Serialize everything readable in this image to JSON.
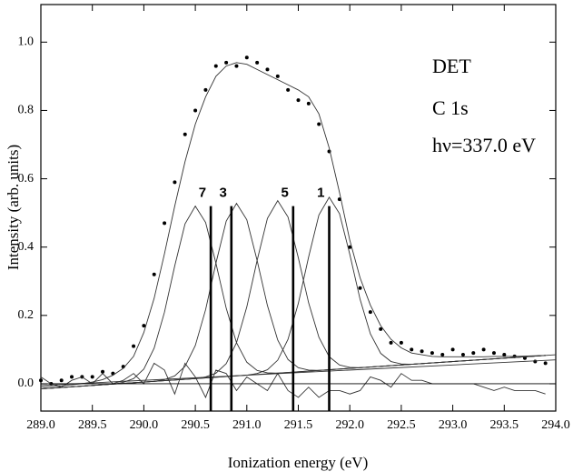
{
  "chart_data": {
    "type": "line",
    "xlabel": "Ionization energy (eV)",
    "ylabel": "Intensity (arb. units)",
    "annotations": [
      "DET",
      "C 1s",
      "hν=337.0 eV"
    ],
    "xlim": [
      289,
      294
    ],
    "ylim": [
      -0.08,
      1.11
    ],
    "xticks": [
      {
        "value": 289,
        "label": "289.0"
      },
      {
        "value": 289.5,
        "label": "289.5"
      },
      {
        "value": 290,
        "label": "290.0"
      },
      {
        "value": 290.5,
        "label": "290.5"
      },
      {
        "value": 291,
        "label": "291.0"
      },
      {
        "value": 291.5,
        "label": "291.5"
      },
      {
        "value": 292,
        "label": "292.0"
      },
      {
        "value": 292.5,
        "label": "292.5"
      },
      {
        "value": 293,
        "label": "293.0"
      },
      {
        "value": 293.5,
        "label": "293.5"
      },
      {
        "value": 294,
        "label": "294.0"
      }
    ],
    "yticks": [
      {
        "value": 0,
        "label": "0.0"
      },
      {
        "value": 0.2,
        "label": "0.2"
      },
      {
        "value": 0.4,
        "label": "0.4"
      },
      {
        "value": 0.6,
        "label": "0.6"
      },
      {
        "value": 0.8,
        "label": "0.8"
      },
      {
        "value": 1,
        "label": "1.0"
      }
    ],
    "x": [
      289.0,
      289.1,
      289.2,
      289.3,
      289.4,
      289.5,
      289.6,
      289.7,
      289.8,
      289.9,
      290.0,
      290.1,
      290.2,
      290.3,
      290.4,
      290.5,
      290.6,
      290.7,
      290.8,
      290.9,
      291.0,
      291.1,
      291.2,
      291.3,
      291.4,
      291.5,
      291.6,
      291.7,
      291.8,
      291.9,
      292.0,
      292.1,
      292.2,
      292.3,
      292.4,
      292.5,
      292.6,
      292.7,
      292.8,
      292.9,
      293.0,
      293.1,
      293.2,
      293.3,
      293.4,
      293.5,
      293.6,
      293.7,
      293.8,
      293.9
    ],
    "series": [
      {
        "style": "dots",
        "color": "#000000",
        "values": [
          0.01,
          0.0,
          0.01,
          0.02,
          0.02,
          0.02,
          0.035,
          0.03,
          0.05,
          0.11,
          0.17,
          0.32,
          0.47,
          0.59,
          0.73,
          0.8,
          0.86,
          0.93,
          0.94,
          0.93,
          0.955,
          0.94,
          0.92,
          0.9,
          0.86,
          0.83,
          0.82,
          0.76,
          0.68,
          0.54,
          0.4,
          0.28,
          0.21,
          0.16,
          0.12,
          0.12,
          0.1,
          0.095,
          0.09,
          0.085,
          0.1,
          0.085,
          0.09,
          0.1,
          0.09,
          0.085,
          0.08,
          0.075,
          0.065,
          0.06
        ]
      },
      {
        "style": "line",
        "color": "#333333",
        "values": [
          -0.01,
          -0.008,
          -0.006,
          -0.003,
          0.0,
          0.005,
          0.012,
          0.025,
          0.045,
          0.08,
          0.15,
          0.25,
          0.38,
          0.52,
          0.65,
          0.76,
          0.84,
          0.9,
          0.93,
          0.94,
          0.935,
          0.92,
          0.905,
          0.89,
          0.875,
          0.86,
          0.84,
          0.79,
          0.69,
          0.56,
          0.42,
          0.31,
          0.23,
          0.17,
          0.13,
          0.105,
          0.09,
          0.085,
          0.08,
          0.079,
          0.079,
          0.079,
          0.079,
          0.079,
          0.08,
          0.08,
          0.08,
          0.081,
          0.082,
          0.083
        ]
      },
      {
        "style": "line",
        "color": "#333333",
        "values": [
          -0.015,
          -0.013,
          -0.011,
          -0.009,
          -0.007,
          -0.005,
          -0.003,
          -0.001,
          0.004,
          0.015,
          0.043,
          0.104,
          0.209,
          0.345,
          0.468,
          0.52,
          0.472,
          0.353,
          0.221,
          0.12,
          0.063,
          0.039,
          0.032,
          0.031,
          0.033,
          0.035,
          0.037,
          0.039,
          0.041,
          0.043,
          0.045,
          0.047,
          0.049,
          0.051,
          0.053,
          0.055,
          0.057,
          0.059,
          0.061,
          0.063,
          0.065,
          0.067,
          0.069,
          0.071,
          0.073,
          0.075,
          0.077,
          0.079,
          0.081,
          0.083
        ]
      },
      {
        "style": "line",
        "color": "#333333",
        "values": [
          -0.015,
          -0.013,
          -0.011,
          -0.009,
          -0.007,
          -0.005,
          -0.003,
          -0.001,
          0.001,
          0.003,
          0.005,
          0.007,
          0.012,
          0.023,
          0.051,
          0.112,
          0.217,
          0.353,
          0.476,
          0.528,
          0.48,
          0.361,
          0.229,
          0.128,
          0.071,
          0.047,
          0.04,
          0.039,
          0.041,
          0.043,
          0.045,
          0.047,
          0.049,
          0.051,
          0.053,
          0.055,
          0.057,
          0.059,
          0.061,
          0.063,
          0.065,
          0.067,
          0.069,
          0.071,
          0.073,
          0.075,
          0.077,
          0.079,
          0.081,
          0.083
        ]
      },
      {
        "style": "line",
        "color": "#333333",
        "values": [
          -0.015,
          -0.013,
          -0.011,
          -0.009,
          -0.007,
          -0.005,
          -0.003,
          -0.001,
          0.001,
          0.003,
          0.005,
          0.007,
          0.009,
          0.011,
          0.013,
          0.015,
          0.02,
          0.031,
          0.059,
          0.12,
          0.225,
          0.361,
          0.484,
          0.536,
          0.488,
          0.369,
          0.237,
          0.136,
          0.079,
          0.055,
          0.048,
          0.047,
          0.049,
          0.051,
          0.053,
          0.055,
          0.057,
          0.059,
          0.061,
          0.063,
          0.065,
          0.067,
          0.069,
          0.071,
          0.073,
          0.075,
          0.077,
          0.079,
          0.081,
          0.083
        ]
      },
      {
        "style": "line",
        "color": "#333333",
        "values": [
          -0.015,
          -0.013,
          -0.011,
          -0.009,
          -0.007,
          -0.005,
          -0.003,
          -0.001,
          0.001,
          0.003,
          0.005,
          0.007,
          0.009,
          0.011,
          0.013,
          0.015,
          0.017,
          0.019,
          0.021,
          0.023,
          0.025,
          0.03,
          0.041,
          0.069,
          0.13,
          0.235,
          0.371,
          0.494,
          0.546,
          0.498,
          0.379,
          0.247,
          0.146,
          0.089,
          0.065,
          0.058,
          0.057,
          0.059,
          0.061,
          0.063,
          0.065,
          0.067,
          0.069,
          0.071,
          0.073,
          0.075,
          0.077,
          0.079,
          0.081,
          0.083
        ]
      },
      {
        "style": "line",
        "color": "#333333",
        "values": [
          0.02,
          0.0,
          -0.01,
          0.01,
          0.02,
          0.0,
          0.03,
          0.0,
          0.01,
          0.03,
          0.0,
          0.06,
          0.04,
          -0.03,
          0.06,
          0.02,
          -0.04,
          0.04,
          0.03,
          -0.02,
          0.02,
          0.0,
          -0.02,
          0.03,
          -0.02,
          -0.04,
          -0.01,
          -0.04,
          -0.02,
          -0.02,
          -0.03,
          -0.02,
          0.02,
          0.01,
          -0.01,
          0.03,
          0.01,
          0.01,
          0.0,
          0.0,
          0.0,
          0.0,
          0.0,
          -0.01,
          -0.02,
          -0.01,
          -0.02,
          -0.02,
          -0.02,
          -0.03
        ]
      },
      {
        "style": "line",
        "color": "#333333",
        "x": [
          289,
          294
        ],
        "values": [
          -0.015,
          0.085
        ]
      },
      {
        "style": "line",
        "color": "#333333",
        "x": [
          289,
          294
        ],
        "values": [
          -0.005,
          0.07
        ]
      },
      {
        "style": "line",
        "color": "#000000",
        "x": [
          289,
          294
        ],
        "values": [
          0.0,
          0.0
        ]
      }
    ],
    "markers": [
      {
        "label": "7",
        "x": 290.65,
        "top": 0.52
      },
      {
        "label": "3",
        "x": 290.85,
        "top": 0.52
      },
      {
        "label": "5",
        "x": 291.45,
        "top": 0.52
      },
      {
        "label": "1",
        "x": 291.8,
        "top": 0.52
      }
    ]
  }
}
